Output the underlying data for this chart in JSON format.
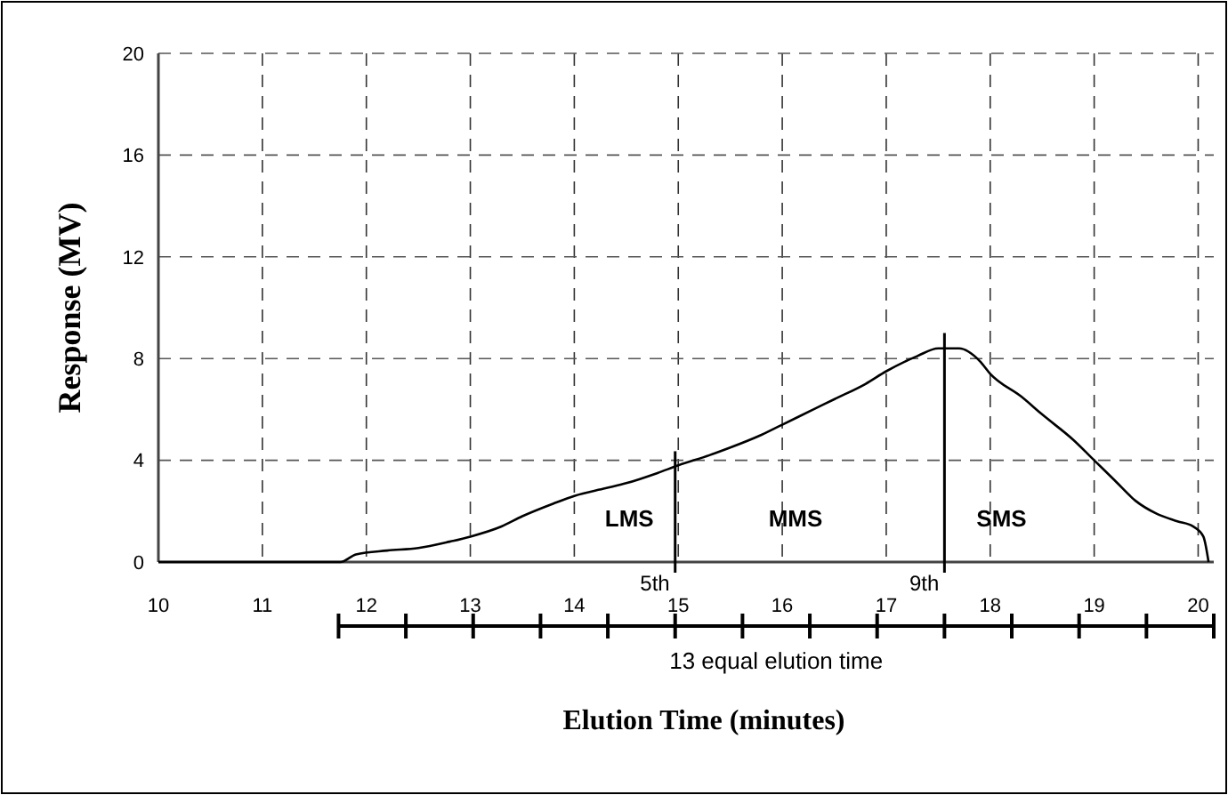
{
  "chart_data": {
    "type": "line",
    "xlabel": "Elution Time (minutes)",
    "ylabel": "Response  (MV)",
    "x": [
      10,
      11,
      11.75,
      11.9,
      12.2,
      12.5,
      12.8,
      13,
      13.3,
      13.5,
      13.8,
      14,
      14.3,
      14.5,
      14.8,
      15,
      15.3,
      15.5,
      15.8,
      16,
      16.3,
      16.5,
      16.8,
      17,
      17.3,
      17.5,
      17.7,
      17.9,
      18,
      18.3,
      18.5,
      18.8,
      19,
      19.2,
      19.4,
      19.6,
      19.8,
      19.95,
      20.05,
      20.1
    ],
    "series": [
      {
        "color": "#000000",
        "values": [
          0,
          0,
          0,
          0.3,
          0.45,
          0.55,
          0.8,
          1.0,
          1.4,
          1.8,
          2.3,
          2.6,
          2.9,
          3.1,
          3.5,
          3.8,
          4.2,
          4.5,
          5.0,
          5.4,
          6.0,
          6.4,
          7.0,
          7.5,
          8.1,
          8.4,
          8.4,
          7.9,
          7.4,
          6.5,
          5.8,
          4.8,
          4.0,
          3.2,
          2.4,
          1.9,
          1.6,
          1.4,
          1.0,
          0
        ]
      }
    ],
    "xlim": [
      10,
      20.15
    ],
    "ylim": [
      0,
      20
    ],
    "xticks": [
      10,
      11,
      12,
      13,
      14,
      15,
      16,
      17,
      18,
      19,
      20
    ],
    "yticks": [
      0,
      4,
      8,
      12,
      16,
      20
    ],
    "grid": true,
    "marker": "none",
    "line_style": "solid",
    "ref_lines": [
      {
        "axis": "x",
        "value": 14.97,
        "label": "5th",
        "color": "#000000"
      },
      {
        "axis": "x",
        "value": 17.56,
        "label": "9th",
        "color": "#000000"
      }
    ],
    "annotations": [
      "LMS",
      "MMS",
      "SMS",
      "13 equal elution time"
    ]
  }
}
